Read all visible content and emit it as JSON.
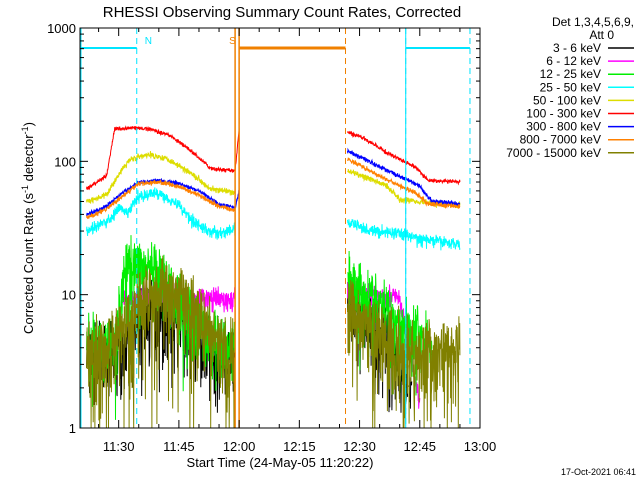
{
  "chart_data": {
    "type": "line",
    "title": "RHESSI Observing Summary Count Rates, Corrected",
    "xlabel": "Start Time (24-May-05 11:20:22)",
    "ylabel": "Corrected Count Rate (s",
    "ylabel_sup1": "-1",
    "ylabel_mid": " detector",
    "ylabel_sup2": "-1",
    "ylabel_end": ")",
    "yscale": "log",
    "ylim": [
      1,
      1000
    ],
    "xlim": [
      "11:20:22",
      "13:00"
    ],
    "x_ticks": [
      "11:30",
      "11:45",
      "12:00",
      "12:15",
      "12:30",
      "12:45",
      "13:00"
    ],
    "y_ticks": [
      "1",
      "10",
      "100",
      "1000"
    ],
    "legend_header": [
      "Det 1,3,4,5,6,9,",
      "Att 0"
    ],
    "legend_placement": "right",
    "timestamp": "17-Oct-2021 06:41",
    "gaps": [
      [
        "11:59:30",
        "12:26:30"
      ]
    ],
    "flags": [
      {
        "label": "N",
        "color": "#00e5ff",
        "segments": [
          [
            "11:20:22",
            "11:34:30"
          ],
          [
            "12:41:30",
            "12:57:30"
          ]
        ],
        "markers": [
          "11:34:30",
          "12:41:30",
          "12:57:30"
        ]
      },
      {
        "label": "S",
        "color": "#f08000",
        "segments": [
          [
            "12:00",
            "12:26:30"
          ]
        ],
        "markers": [
          "12:00",
          "12:26:30"
        ]
      }
    ],
    "series": [
      {
        "name": "3 - 6 keV",
        "color": "#000000",
        "noise": 0.5,
        "hide_below": 1.3,
        "segments": [
          [
            [
              "11:22",
              3.5
            ],
            [
              "11:31",
              3.5
            ],
            [
              "11:33",
              4
            ],
            [
              "11:36",
              7.5
            ],
            [
              "11:42",
              7
            ],
            [
              "11:48",
              5
            ],
            [
              "11:53",
              3.8
            ],
            [
              "11:59",
              3.5
            ]
          ],
          [
            [
              "12:27",
              8
            ],
            [
              "12:33",
              6
            ],
            [
              "12:38",
              4
            ],
            [
              "12:43",
              1.5
            ]
          ]
        ]
      },
      {
        "name": "6 - 12 keV",
        "color": "#ff00ff",
        "noise": 0.15,
        "hide_below": 1.3,
        "segments": [
          [
            [
              "11:31",
              9
            ],
            [
              "11:36",
              10
            ],
            [
              "11:42",
              10.5
            ],
            [
              "11:48",
              9.5
            ],
            [
              "11:54",
              9.2
            ],
            [
              "11:59",
              9
            ]
          ],
          [
            [
              "12:27",
              11
            ],
            [
              "12:33",
              10
            ],
            [
              "12:37",
              10
            ],
            [
              "12:40",
              9.2
            ],
            [
              "12:43",
              3
            ],
            [
              "12:45",
              1.5
            ]
          ]
        ]
      },
      {
        "name": "12 - 25 keV",
        "color": "#00ee00",
        "noise": 0.45,
        "segments": [
          [
            [
              "11:22",
              4
            ],
            [
              "11:29",
              4.5
            ],
            [
              "11:31",
              12
            ],
            [
              "11:33",
              18
            ],
            [
              "11:38",
              15
            ],
            [
              "11:44",
              10
            ],
            [
              "11:50",
              6
            ],
            [
              "11:55",
              4.3
            ],
            [
              "11:59",
              4
            ]
          ],
          [
            [
              "12:27",
              13
            ],
            [
              "12:32",
              10
            ],
            [
              "12:38",
              7
            ],
            [
              "12:40",
              6
            ],
            [
              "12:45",
              5
            ],
            [
              "12:48",
              4
            ]
          ]
        ]
      },
      {
        "name": "25 - 50 keV",
        "color": "#00ffff",
        "noise": 0.08,
        "segments": [
          [
            [
              "11:22",
              30
            ],
            [
              "11:25",
              33
            ],
            [
              "11:28",
              37
            ],
            [
              "11:30",
              45
            ],
            [
              "11:32",
              40
            ],
            [
              "11:35",
              55
            ],
            [
              "11:40",
              58
            ],
            [
              "11:45",
              47
            ],
            [
              "11:48",
              37
            ],
            [
              "11:52",
              30
            ],
            [
              "11:56",
              29
            ],
            [
              "11:59",
              31
            ]
          ],
          [
            [
              "12:27",
              35
            ],
            [
              "12:33",
              30
            ],
            [
              "12:40",
              29
            ],
            [
              "12:45",
              26
            ],
            [
              "12:50",
              25
            ],
            [
              "12:55",
              24
            ]
          ]
        ]
      },
      {
        "name": "50 - 100 keV",
        "color": "#dddd00",
        "noise": 0.04,
        "segments": [
          [
            [
              "11:22",
              50
            ],
            [
              "11:27",
              56
            ],
            [
              "11:30",
              80
            ],
            [
              "11:33",
              105
            ],
            [
              "11:38",
              112
            ],
            [
              "11:42",
              105
            ],
            [
              "11:48",
              82
            ],
            [
              "11:53",
              62
            ],
            [
              "11:59",
              58
            ]
          ],
          [
            [
              "12:27",
              85
            ],
            [
              "12:32",
              75
            ],
            [
              "12:37",
              65
            ],
            [
              "12:40",
              52
            ],
            [
              "12:45",
              50
            ],
            [
              "12:50",
              48
            ],
            [
              "12:55",
              47
            ]
          ]
        ]
      },
      {
        "name": "100 - 300 keV",
        "color": "#ff0000",
        "noise": 0.025,
        "segments": [
          [
            [
              "11:22",
              62
            ],
            [
              "11:27",
              78
            ],
            [
              "11:29",
              175
            ],
            [
              "11:33",
              178
            ],
            [
              "11:38",
              175
            ],
            [
              "11:43",
              155
            ],
            [
              "11:48",
              120
            ],
            [
              "11:53",
              88
            ],
            [
              "11:59",
              85
            ],
            [
              "12:00",
              170
            ]
          ],
          [
            [
              "12:27",
              165
            ],
            [
              "12:31",
              150
            ],
            [
              "12:36",
              120
            ],
            [
              "12:41",
              100
            ],
            [
              "12:44",
              90
            ],
            [
              "12:47",
              72
            ],
            [
              "12:55",
              70
            ]
          ]
        ]
      },
      {
        "name": "300 - 800 keV",
        "color": "#0000ff",
        "noise": 0.03,
        "segments": [
          [
            [
              "11:22",
              40
            ],
            [
              "11:26",
              44
            ],
            [
              "11:30",
              55
            ],
            [
              "11:35",
              70
            ],
            [
              "11:40",
              72
            ],
            [
              "11:45",
              68
            ],
            [
              "11:50",
              60
            ],
            [
              "11:55",
              48
            ],
            [
              "11:59",
              45
            ],
            [
              "12:00",
              60
            ]
          ],
          [
            [
              "12:27",
              120
            ],
            [
              "12:31",
              105
            ],
            [
              "12:36",
              88
            ],
            [
              "12:41",
              75
            ],
            [
              "12:45",
              65
            ],
            [
              "12:48",
              50
            ],
            [
              "12:55",
              48
            ]
          ]
        ]
      },
      {
        "name": "800 - 7000 keV",
        "color": "#ff8000",
        "noise": 0.03,
        "segments": [
          [
            [
              "11:22",
              38
            ],
            [
              "11:26",
              42
            ],
            [
              "11:30",
              52
            ],
            [
              "11:35",
              68
            ],
            [
              "11:40",
              70
            ],
            [
              "11:45",
              65
            ],
            [
              "11:50",
              56
            ],
            [
              "11:55",
              46
            ],
            [
              "11:59",
              43
            ]
          ],
          [
            [
              "12:27",
              105
            ],
            [
              "12:31",
              90
            ],
            [
              "12:36",
              75
            ],
            [
              "12:41",
              63
            ],
            [
              "12:44",
              58
            ],
            [
              "12:47",
              48
            ],
            [
              "12:55",
              46
            ]
          ]
        ]
      },
      {
        "name": "7000 - 15000 keV",
        "color": "#808000",
        "noise": 0.6,
        "segments": [
          [
            [
              "11:22",
              3.5
            ],
            [
              "11:28",
              4
            ],
            [
              "11:32",
              6
            ],
            [
              "11:36",
              8.5
            ],
            [
              "11:41",
              10.5
            ],
            [
              "11:46",
              9
            ],
            [
              "11:51",
              6
            ],
            [
              "11:55",
              4
            ],
            [
              "11:59",
              3.5
            ]
          ],
          [
            [
              "12:27",
              8
            ],
            [
              "12:32",
              6
            ],
            [
              "12:37",
              4.5
            ],
            [
              "12:43",
              3.5
            ],
            [
              "12:48",
              3.5
            ],
            [
              "12:55",
              3.5
            ]
          ]
        ]
      }
    ]
  }
}
